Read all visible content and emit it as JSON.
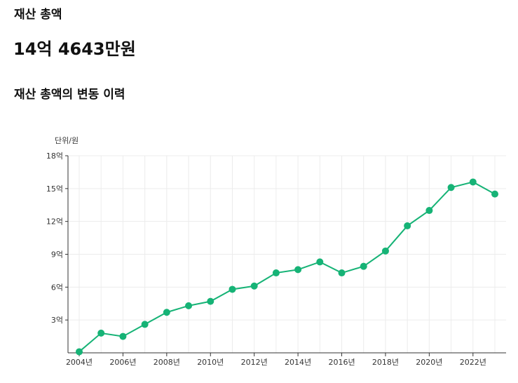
{
  "header": {
    "title": "재산 총액",
    "amount": "14억 4643만원",
    "chart_title": "재산 총액의 변동 이력"
  },
  "colors": {
    "accent": "#16b376",
    "grid": "#ececec",
    "axis": "#333333"
  },
  "chart_data": {
    "type": "line",
    "unit_label": "단위/원",
    "x": [
      2004,
      2005,
      2006,
      2007,
      2008,
      2009,
      2010,
      2011,
      2012,
      2013,
      2014,
      2015,
      2016,
      2017,
      2018,
      2019,
      2020,
      2021,
      2022,
      2023
    ],
    "x_tick_labels": [
      "2004년",
      "2006년",
      "2008년",
      "2010년",
      "2012년",
      "2014년",
      "2016년",
      "2018년",
      "2020년",
      "2022년"
    ],
    "x_tick_years": [
      2004,
      2006,
      2008,
      2010,
      2012,
      2014,
      2016,
      2018,
      2020,
      2022
    ],
    "y_tick_values": [
      3,
      6,
      9,
      12,
      15,
      18
    ],
    "y_tick_labels": [
      "3억",
      "6억",
      "9억",
      "12억",
      "15억",
      "18억"
    ],
    "ylim": [
      0,
      18
    ],
    "series": [
      {
        "values": [
          0.1,
          1.8,
          1.5,
          2.6,
          3.7,
          4.3,
          4.7,
          5.8,
          6.1,
          7.3,
          7.6,
          8.3,
          7.3,
          7.9,
          9.3,
          11.6,
          13.0,
          15.1,
          15.6,
          14.5
        ]
      }
    ],
    "grid": true
  }
}
